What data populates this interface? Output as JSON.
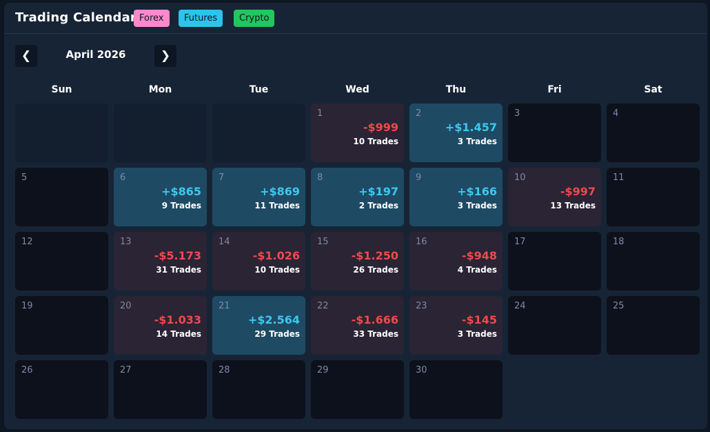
{
  "header": {
    "title": "Trading Calendar",
    "tags": [
      {
        "label": "Forex",
        "color": "#ff88cc"
      },
      {
        "label": "Futures",
        "color": "#2cc4ec"
      },
      {
        "label": "Crypto",
        "color": "#22c55e"
      }
    ]
  },
  "nav": {
    "prev_icon": "chevron-left-icon",
    "next_icon": "chevron-right-icon",
    "month_label": "April 2026"
  },
  "weekdays": [
    "Sun",
    "Mon",
    "Tue",
    "Wed",
    "Thu",
    "Fri",
    "Sat"
  ],
  "colors": {
    "profit": "#3cc8f0",
    "loss": "#ef4a4a",
    "profit_bg": "#1f4a64",
    "loss_bg": "#2a2434"
  },
  "leading_blank_days": 3,
  "days": [
    {
      "day": "1",
      "pnl": "-$999",
      "trades": "10 Trades",
      "result": "loss"
    },
    {
      "day": "2",
      "pnl": "+$1.457",
      "trades": "3 Trades",
      "result": "profit"
    },
    {
      "day": "3"
    },
    {
      "day": "4"
    },
    {
      "day": "5"
    },
    {
      "day": "6",
      "pnl": "+$865",
      "trades": "9 Trades",
      "result": "profit"
    },
    {
      "day": "7",
      "pnl": "+$869",
      "trades": "11 Trades",
      "result": "profit"
    },
    {
      "day": "8",
      "pnl": "+$197",
      "trades": "2 Trades",
      "result": "profit"
    },
    {
      "day": "9",
      "pnl": "+$166",
      "trades": "3 Trades",
      "result": "profit"
    },
    {
      "day": "10",
      "pnl": "-$997",
      "trades": "13 Trades",
      "result": "loss"
    },
    {
      "day": "11"
    },
    {
      "day": "12"
    },
    {
      "day": "13",
      "pnl": "-$5.173",
      "trades": "31 Trades",
      "result": "loss"
    },
    {
      "day": "14",
      "pnl": "-$1.026",
      "trades": "10 Trades",
      "result": "loss"
    },
    {
      "day": "15",
      "pnl": "-$1.250",
      "trades": "26 Trades",
      "result": "loss"
    },
    {
      "day": "16",
      "pnl": "-$948",
      "trades": "4 Trades",
      "result": "loss"
    },
    {
      "day": "17"
    },
    {
      "day": "18"
    },
    {
      "day": "19"
    },
    {
      "day": "20",
      "pnl": "-$1.033",
      "trades": "14 Trades",
      "result": "loss"
    },
    {
      "day": "21",
      "pnl": "+$2.564",
      "trades": "29 Trades",
      "result": "profit"
    },
    {
      "day": "22",
      "pnl": "-$1.666",
      "trades": "33 Trades",
      "result": "loss"
    },
    {
      "day": "23",
      "pnl": "-$145",
      "trades": "3 Trades",
      "result": "loss"
    },
    {
      "day": "24"
    },
    {
      "day": "25"
    },
    {
      "day": "26"
    },
    {
      "day": "27"
    },
    {
      "day": "28"
    },
    {
      "day": "29"
    },
    {
      "day": "30"
    }
  ]
}
